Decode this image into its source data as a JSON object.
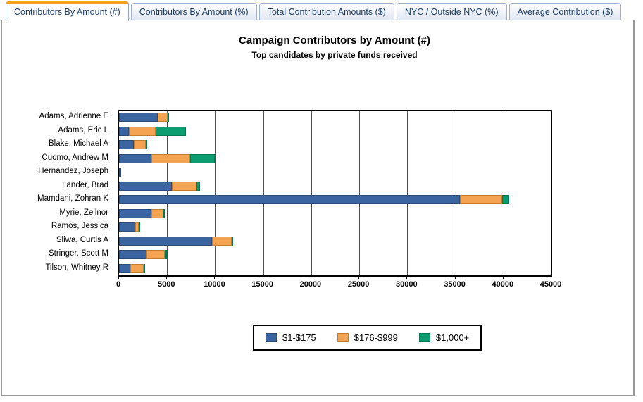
{
  "tabs": [
    {
      "label": "Contributors By Amount (#)",
      "active": true
    },
    {
      "label": "Contributors By Amount (%)",
      "active": false
    },
    {
      "label": "Total Contribution Amounts ($)",
      "active": false
    },
    {
      "label": "NYC / Outside NYC (%)",
      "active": false
    },
    {
      "label": "Average Contribution ($)",
      "active": false
    }
  ],
  "chart_data": {
    "type": "bar",
    "orientation": "horizontal",
    "stacked": true,
    "title": "Campaign Contributors by Amount (#)",
    "subtitle": "Top candidates by private funds received",
    "categories": [
      "Adams, Adrienne E",
      "Adams, Eric L",
      "Blake, Michael A",
      "Cuomo, Andrew M",
      "Hernandez, Joseph",
      "Lander, Brad",
      "Mamdani, Zohran K",
      "Myrie, Zellnor",
      "Ramos, Jessica",
      "Sliwa, Curtis A",
      "Stringer, Scott M",
      "Tilson, Whitney R"
    ],
    "series": [
      {
        "name": "$1-$175",
        "color": "#3a65a0",
        "border": "#2a4a77",
        "values": [
          4000,
          1000,
          1550,
          3350,
          200,
          5500,
          35500,
          3400,
          1650,
          9700,
          2850,
          1200
        ]
      },
      {
        "name": "$176-$999",
        "color": "#f3a351",
        "border": "#c07c2f",
        "values": [
          1050,
          2800,
          1250,
          4050,
          0,
          2550,
          4400,
          1200,
          400,
          2000,
          1900,
          1400
        ]
      },
      {
        "name": "$1,000+",
        "color": "#0b9c70",
        "border": "#007a54",
        "values": [
          100,
          3150,
          150,
          2550,
          0,
          400,
          700,
          200,
          50,
          150,
          250,
          150
        ]
      }
    ],
    "xlim": [
      0,
      45000
    ],
    "x_ticks": [
      0,
      5000,
      10000,
      15000,
      20000,
      25000,
      30000,
      35000,
      40000,
      45000
    ],
    "grid": true,
    "legend_position": "bottom"
  },
  "colors": {
    "active_tab_top": "#f9a01b",
    "tab_text": "#1c3e6e",
    "panel_border": "#999999",
    "gridline": "#4d4d4d"
  }
}
